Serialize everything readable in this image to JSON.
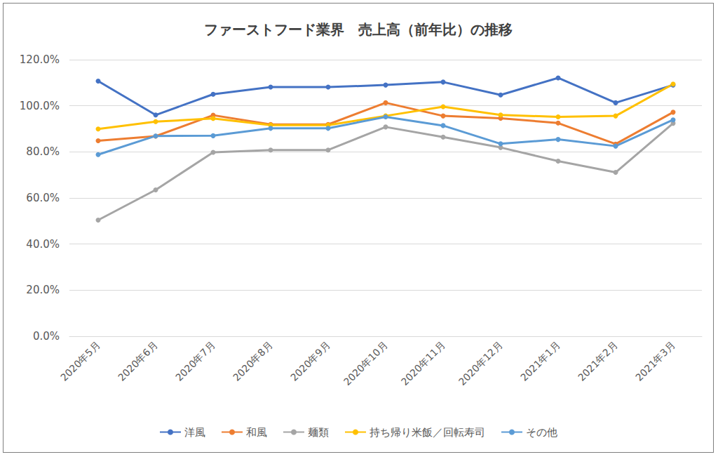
{
  "chart_data": {
    "type": "line",
    "title": "ファーストフード業界　売上高（前年比）の推移",
    "categories": [
      "2020年5月",
      "2020年6月",
      "2020年7月",
      "2020年8月",
      "2020年9月",
      "2020年10月",
      "2020年11月",
      "2020年12月",
      "2021年1月",
      "2021年2月",
      "2021年3月"
    ],
    "series": [
      {
        "name": "洋風",
        "color": "#4472c4",
        "values": [
          110.7,
          96.0,
          105.0,
          108.1,
          108.1,
          109.0,
          110.3,
          104.7,
          112.1,
          101.3,
          109.0
        ]
      },
      {
        "name": "和風",
        "color": "#ed7d31",
        "values": [
          84.8,
          86.8,
          95.9,
          91.9,
          91.9,
          101.3,
          95.6,
          94.6,
          92.5,
          83.4,
          97.2
        ]
      },
      {
        "name": "麺類",
        "color": "#a5a5a5",
        "values": [
          50.4,
          63.5,
          79.8,
          80.8,
          80.8,
          90.8,
          86.4,
          81.9,
          76.0,
          71.1,
          92.4
        ]
      },
      {
        "name": "持ち帰り米飯／回転寿司",
        "color": "#ffc000",
        "values": [
          89.9,
          93.1,
          94.5,
          91.6,
          91.6,
          95.6,
          99.6,
          96.0,
          95.2,
          95.6,
          109.4
        ]
      },
      {
        "name": "その他",
        "color": "#5b9bd5",
        "values": [
          78.8,
          86.9,
          87.0,
          90.2,
          90.2,
          95.2,
          91.4,
          83.5,
          85.4,
          82.5,
          93.9
        ]
      }
    ],
    "ylim": [
      0,
      120
    ],
    "yticks": [
      {
        "value": 0,
        "label": "0.0%"
      },
      {
        "value": 20,
        "label": "20.0%"
      },
      {
        "value": 40,
        "label": "40.0%"
      },
      {
        "value": 60,
        "label": "60.0%"
      },
      {
        "value": 80,
        "label": "80.0%"
      },
      {
        "value": 100,
        "label": "100.0%"
      },
      {
        "value": 120,
        "label": "120.0%"
      }
    ],
    "grid": true,
    "legend": "bottom",
    "marker": "circle"
  }
}
